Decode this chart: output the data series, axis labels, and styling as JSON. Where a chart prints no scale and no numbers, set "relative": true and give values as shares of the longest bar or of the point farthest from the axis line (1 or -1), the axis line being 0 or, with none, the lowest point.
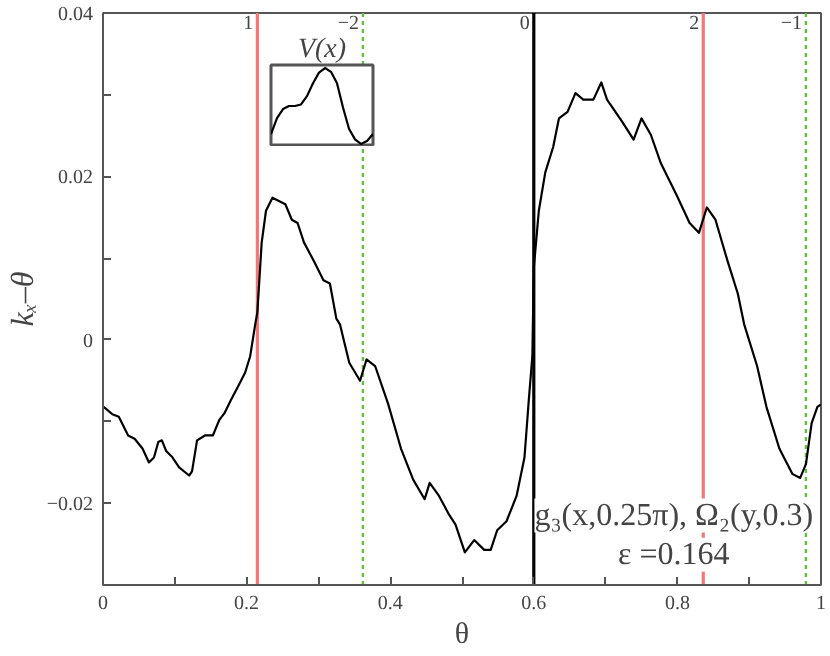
{
  "chart_data": [
    {
      "type": "line",
      "xlabel": "θ",
      "ylabel": "kₓ–θ",
      "xlim": [
        0,
        1
      ],
      "ylim": [
        -0.03,
        0.04
      ],
      "xticks": [
        0,
        {
          "value": 0.1,
          "label": null
        },
        0.2,
        {
          "value": 0.3,
          "label": null
        },
        0.4,
        {
          "value": 0.5,
          "label": null
        },
        0.6,
        {
          "value": 0.7,
          "label": null
        },
        0.8,
        {
          "value": 0.9,
          "label": null
        },
        1
      ],
      "yticks": [
        {
          "value": -0.02,
          "label": "−0.02"
        },
        {
          "value": -0.01,
          "label": null
        },
        0,
        {
          "value": 0.01,
          "label": null
        },
        0.02,
        {
          "value": 0.03,
          "label": null
        },
        0.04
      ],
      "grid": false,
      "series": [
        {
          "color": "#000000",
          "x": [
            0.001,
            0.013,
            0.022,
            0.035,
            0.044,
            0.055,
            0.064,
            0.071,
            0.077,
            0.082,
            0.088,
            0.096,
            0.106,
            0.12,
            0.124,
            0.131,
            0.142,
            0.153,
            0.162,
            0.169,
            0.178,
            0.187,
            0.198,
            0.205,
            0.212,
            0.215,
            0.221,
            0.227,
            0.236,
            0.245,
            0.254,
            0.263,
            0.271,
            0.28,
            0.294,
            0.307,
            0.316,
            0.325,
            0.33,
            0.343,
            0.358,
            0.367,
            0.379,
            0.397,
            0.415,
            0.432,
            0.448,
            0.455,
            0.468,
            0.482,
            0.491,
            0.504,
            0.517,
            0.531,
            0.54,
            0.549,
            0.562,
            0.576,
            0.587,
            0.593,
            0.598,
            0.6,
            0.607,
            0.616,
            0.627,
            0.635,
            0.647,
            0.658,
            0.669,
            0.683,
            0.694,
            0.702,
            0.723,
            0.739,
            0.75,
            0.763,
            0.777,
            0.799,
            0.817,
            0.83,
            0.841,
            0.853,
            0.87,
            0.884,
            0.893,
            0.911,
            0.924,
            0.942,
            0.96,
            0.971,
            0.979,
            0.987,
            0.995,
            1.0
          ],
          "values": [
            -0.0082,
            -0.0091,
            -0.0094,
            -0.0117,
            -0.0121,
            -0.0133,
            -0.015,
            -0.0144,
            -0.0125,
            -0.0123,
            -0.0136,
            -0.0143,
            -0.0156,
            -0.0166,
            -0.0161,
            -0.0123,
            -0.0117,
            -0.0117,
            -0.0098,
            -0.009,
            -0.0074,
            -0.0059,
            -0.004,
            -0.002,
            0.0019,
            0.0034,
            0.0119,
            0.0158,
            0.0174,
            0.017,
            0.0166,
            0.0147,
            0.0143,
            0.0119,
            0.0096,
            0.0073,
            0.0069,
            0.0026,
            0.0019,
            -0.0028,
            -0.005,
            -0.0024,
            -0.0032,
            -0.0078,
            -0.0133,
            -0.0171,
            -0.0195,
            -0.0175,
            -0.0191,
            -0.0214,
            -0.0226,
            -0.026,
            -0.0245,
            -0.0257,
            -0.0257,
            -0.0233,
            -0.0222,
            -0.0191,
            -0.0144,
            -0.0074,
            -0.002,
            0.0088,
            0.0158,
            0.0205,
            0.0236,
            0.0271,
            0.0279,
            0.0302,
            0.0294,
            0.0294,
            0.0315,
            0.0294,
            0.0267,
            0.0245,
            0.0271,
            0.0251,
            0.0216,
            0.0177,
            0.0143,
            0.0131,
            0.0162,
            0.0147,
            0.0096,
            0.0057,
            0.0019,
            -0.0032,
            -0.0082,
            -0.0133,
            -0.0164,
            -0.0169,
            -0.0152,
            -0.0102,
            -0.0082,
            -0.0079
          ]
        }
      ],
      "ref_lines": [
        {
          "axis": "x",
          "value": 0.215,
          "color": "#f07878",
          "line_style": "solid"
        },
        {
          "axis": "x",
          "value": 0.362,
          "color": "#66bb44",
          "line_style": "dotted"
        },
        {
          "axis": "x",
          "value": 0.6,
          "color": "#000000",
          "line_style": "solid"
        },
        {
          "axis": "x",
          "value": 0.836,
          "color": "#f07878",
          "line_style": "solid"
        },
        {
          "axis": "x",
          "value": 0.979,
          "color": "#66bb44",
          "line_style": "dotted"
        }
      ],
      "annotations": [
        "g₃(x,0.25π), Ω₂(y,0.3)",
        "ε =0.164",
        {
          "text": "1",
          "x": 0.215,
          "y": 0.04
        },
        {
          "text": "−2",
          "x": 0.362,
          "y": 0.04
        },
        {
          "text": "0",
          "x": 0.6,
          "y": 0.04
        },
        {
          "text": "2",
          "x": 0.836,
          "y": 0.04
        },
        {
          "text": "−1",
          "x": 0.979,
          "y": 0.04
        }
      ]
    },
    {
      "type": "line",
      "title": "V(x)",
      "relative": true,
      "categories": [
        null,
        null,
        null,
        null,
        null,
        null,
        null,
        null,
        null,
        null,
        null,
        null,
        null,
        null,
        null,
        null,
        null,
        null
      ],
      "series": [
        {
          "color": "#000000",
          "values": [
            0.13,
            0.34,
            0.46,
            0.5,
            0.5,
            0.52,
            0.63,
            0.8,
            0.94,
            1,
            0.95,
            0.8,
            0.48,
            0.2,
            0.06,
            0,
            0.04,
            0.13
          ]
        }
      ]
    }
  ]
}
